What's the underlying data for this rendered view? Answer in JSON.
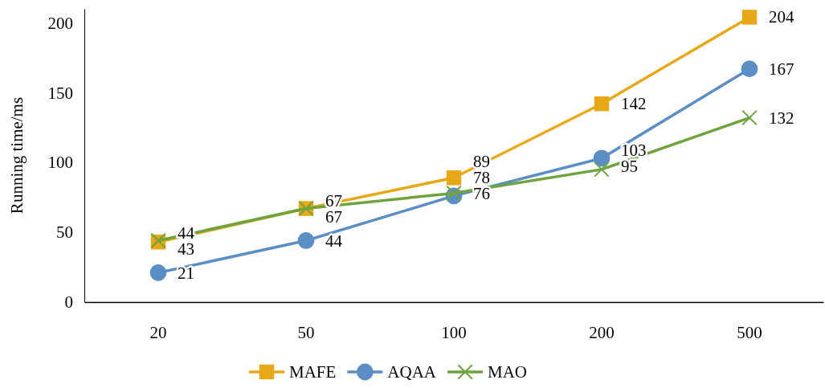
{
  "chart_data": {
    "type": "line",
    "ylabel": "Running time/ms",
    "categories": [
      "20",
      "50",
      "100",
      "200",
      "500"
    ],
    "series": [
      {
        "name": "MAFE",
        "color": "#e6a817",
        "marker": "square",
        "values": [
          43,
          67,
          89,
          142,
          204
        ]
      },
      {
        "name": "AQAA",
        "color": "#5b8ec4",
        "marker": "circle",
        "values": [
          21,
          44,
          76,
          103,
          167
        ]
      },
      {
        "name": "MAO",
        "color": "#6fa33f",
        "marker": "cross",
        "values": [
          44,
          67,
          78,
          95,
          132
        ]
      }
    ],
    "ylim": [
      0,
      210
    ],
    "yticks": [
      0,
      50,
      100,
      150,
      200
    ],
    "grid": false,
    "legend": "bottom",
    "data_labels": true,
    "line_style": "solid"
  }
}
